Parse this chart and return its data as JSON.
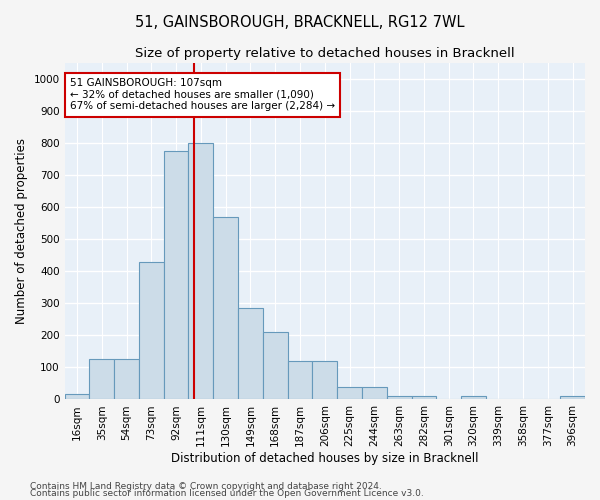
{
  "title": "51, GAINSBOROUGH, BRACKNELL, RG12 7WL",
  "subtitle": "Size of property relative to detached houses in Bracknell",
  "xlabel": "Distribution of detached houses by size in Bracknell",
  "ylabel": "Number of detached properties",
  "bar_color": "#ccdce8",
  "bar_edge_color": "#6699bb",
  "background_color": "#e8f0f8",
  "grid_color": "#ffffff",
  "categories": [
    "16sqm",
    "35sqm",
    "54sqm",
    "73sqm",
    "92sqm",
    "111sqm",
    "130sqm",
    "149sqm",
    "168sqm",
    "187sqm",
    "206sqm",
    "225sqm",
    "244sqm",
    "263sqm",
    "282sqm",
    "301sqm",
    "320sqm",
    "339sqm",
    "358sqm",
    "377sqm",
    "396sqm"
  ],
  "values": [
    18,
    125,
    125,
    430,
    775,
    800,
    570,
    285,
    210,
    120,
    120,
    40,
    40,
    12,
    10,
    0,
    10,
    0,
    0,
    0,
    10
  ],
  "ylim": [
    0,
    1050
  ],
  "yticks": [
    0,
    100,
    200,
    300,
    400,
    500,
    600,
    700,
    800,
    900,
    1000
  ],
  "red_line_x": 4.72,
  "red_line_color": "#cc0000",
  "annotation_line1": "51 GAINSBOROUGH: 107sqm",
  "annotation_line2": "← 32% of detached houses are smaller (1,090)",
  "annotation_line3": "67% of semi-detached houses are larger (2,284) →",
  "annotation_box_color": "#ffffff",
  "annotation_box_edge_color": "#cc0000",
  "footer_line1": "Contains HM Land Registry data © Crown copyright and database right 2024.",
  "footer_line2": "Contains public sector information licensed under the Open Government Licence v3.0.",
  "title_fontsize": 10.5,
  "subtitle_fontsize": 9.5,
  "axis_label_fontsize": 8.5,
  "tick_fontsize": 7.5,
  "annotation_fontsize": 7.5,
  "footer_fontsize": 6.5
}
